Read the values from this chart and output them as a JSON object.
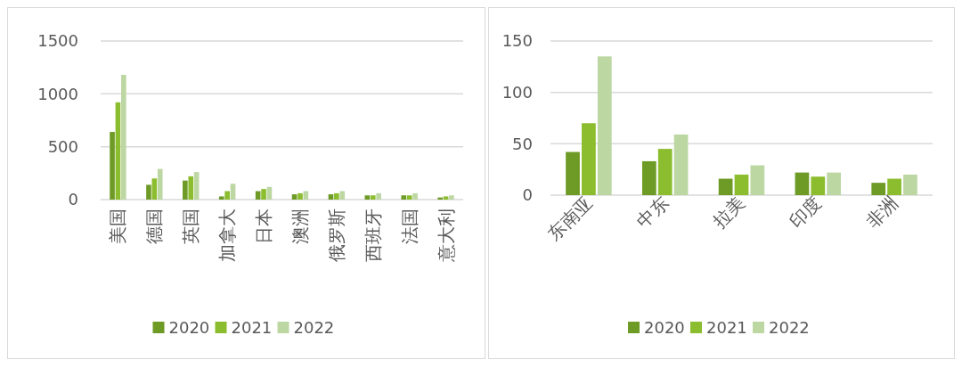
{
  "chart_data": [
    {
      "type": "bar",
      "categories": [
        "美国",
        "德国",
        "英国",
        "加拿大",
        "日本",
        "澳洲",
        "俄罗斯",
        "西班牙",
        "法国",
        "意大利"
      ],
      "series": [
        {
          "name": "2020",
          "color": "#6e9a26",
          "values": [
            640,
            140,
            180,
            30,
            80,
            50,
            50,
            40,
            40,
            20
          ]
        },
        {
          "name": "2021",
          "color": "#8bbd2e",
          "values": [
            920,
            200,
            220,
            80,
            100,
            60,
            60,
            40,
            40,
            30
          ]
        },
        {
          "name": "2022",
          "color": "#bdd7a3",
          "values": [
            1180,
            290,
            260,
            150,
            120,
            80,
            80,
            60,
            60,
            40
          ]
        }
      ],
      "ylim": [
        0,
        1500
      ],
      "yticks": [
        0,
        500,
        1000,
        1500
      ],
      "grid": "y",
      "legend": "bottom"
    },
    {
      "type": "bar",
      "categories": [
        "东南亚",
        "中东",
        "拉美",
        "印度",
        "非洲"
      ],
      "series": [
        {
          "name": "2020",
          "color": "#6e9a26",
          "values": [
            42,
            33,
            16,
            22,
            12
          ]
        },
        {
          "name": "2021",
          "color": "#8bbd2e",
          "values": [
            70,
            45,
            20,
            18,
            16
          ]
        },
        {
          "name": "2022",
          "color": "#bdd7a3",
          "values": [
            135,
            59,
            29,
            22,
            20
          ]
        }
      ],
      "ylim": [
        0,
        150
      ],
      "yticks": [
        0,
        50,
        100,
        150
      ],
      "grid": "y",
      "legend": "bottom"
    }
  ]
}
